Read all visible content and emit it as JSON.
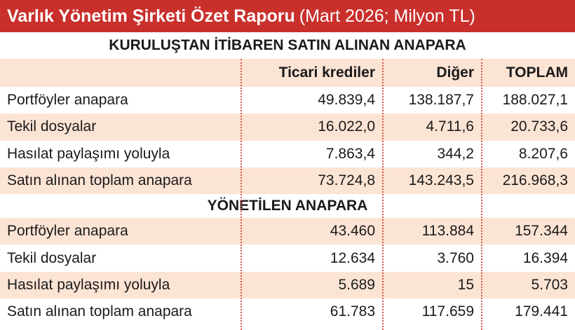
{
  "header": {
    "title": "Varlık Yönetim Şirketi Özet Raporu",
    "subtitle": "(Mart 2026; Milyon TL)"
  },
  "table": {
    "columns": [
      "Ticari krediler",
      "Diğer",
      "TOPLAM"
    ],
    "sections": [
      {
        "heading": "KURULUŞTAN İTİBAREN SATIN ALINAN ANAPARA",
        "rows": [
          {
            "label": "Portföyler anapara",
            "values": [
              "49.839,4",
              "138.187,7",
              "188.027,1"
            ]
          },
          {
            "label": "Tekil dosyalar",
            "values": [
              "16.022,0",
              "4.711,6",
              "20.733,6"
            ]
          },
          {
            "label": "Hasılat paylaşımı yoluyla",
            "values": [
              "7.863,4",
              "344,2",
              "8.207,6"
            ]
          },
          {
            "label": "Satın alınan toplam anapara",
            "values": [
              "73.724,8",
              "143.243,5",
              "216.968,3"
            ]
          }
        ]
      },
      {
        "heading": "YÖNETİLEN ANAPARA",
        "rows": [
          {
            "label": "Portföyler anapara",
            "values": [
              "43.460",
              "113.884",
              "157.344"
            ]
          },
          {
            "label": "Tekil dosyalar",
            "values": [
              "12.634",
              "3.760",
              "16.394"
            ]
          },
          {
            "label": "Hasılat paylaşımı yoluyla",
            "values": [
              "5.689",
              "15",
              "5.703"
            ]
          },
          {
            "label": "Satın alınan toplam anapara",
            "values": [
              "61.783",
              "117.659",
              "179.441"
            ]
          }
        ]
      }
    ]
  }
}
